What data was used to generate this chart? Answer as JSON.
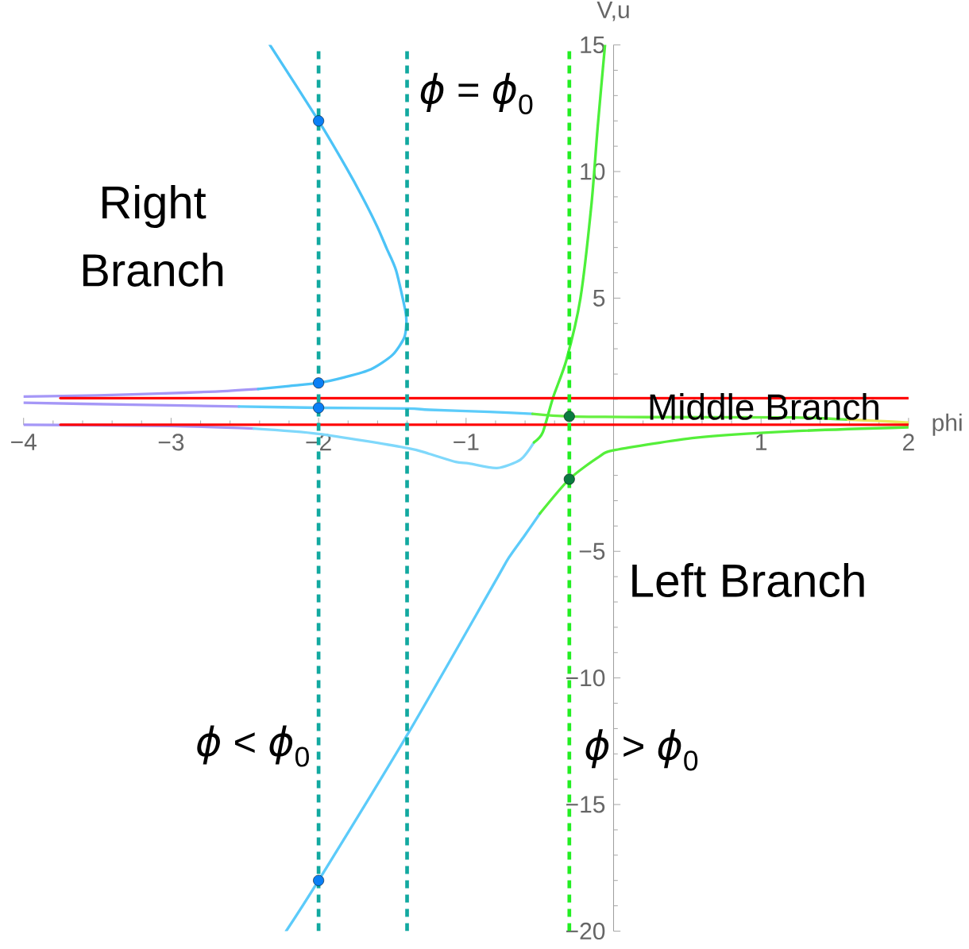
{
  "chart_data": {
    "type": "line",
    "xlabel": "phi",
    "ylabel": "V,u",
    "xlim": [
      -4,
      2
    ],
    "ylim": [
      -20,
      15
    ],
    "xticks": [
      {
        "value": -4,
        "label": "−4"
      },
      {
        "value": -3,
        "label": "−3"
      },
      {
        "value": -2,
        "label": "−2"
      },
      {
        "value": -1,
        "label": "−1"
      },
      1,
      2
    ],
    "yticks": [
      {
        "value": -20,
        "label": "−20"
      },
      {
        "value": -15,
        "label": "−15"
      },
      {
        "value": -10,
        "label": "−10"
      },
      {
        "value": -5,
        "label": "−5"
      },
      5,
      10,
      15
    ],
    "series": [
      {
        "color": "#a597f7",
        "x": [
          -4,
          -3.5,
          -3.09,
          -2.7,
          -2.41
        ],
        "values": [
          1.11,
          1.16,
          1.23,
          1.31,
          1.41
        ]
      },
      {
        "color": "#4cc3f7",
        "x": [
          -2.41,
          -2.2,
          -2,
          -1.82,
          -1.645,
          -1.5,
          -1.42,
          -1.405,
          -1.411,
          -1.475,
          -1.539,
          -1.603,
          -1.71,
          -1.816,
          -2,
          -2.33
        ],
        "values": [
          1.41,
          1.53,
          1.65,
          1.88,
          2.19,
          2.75,
          3.43,
          3.99,
          4.48,
          6.1,
          6.97,
          7.83,
          9.07,
          10.19,
          12,
          15
        ]
      },
      {
        "color": "#a597f7",
        "x": [
          -4,
          -3.26,
          -2.54
        ],
        "values": [
          0.87,
          0.79,
          0.72
        ]
      },
      {
        "color": "#5cccfa",
        "x": [
          -2.54,
          -2,
          -1.4,
          -1.25,
          -0.84,
          -0.55
        ],
        "values": [
          0.72,
          0.67,
          0.64,
          0.59,
          0.51,
          0.43
        ]
      },
      {
        "color": "#66f040",
        "x": [
          -0.55,
          -0.3,
          0.24,
          1.2,
          1.59
        ],
        "values": [
          0.43,
          0.33,
          0.3,
          0.29,
          0.2
        ]
      },
      {
        "color": "#eae85a",
        "x": [
          1.59,
          1.8,
          2
        ],
        "values": [
          0.2,
          0.15,
          0.08
        ]
      },
      {
        "color": "#a597f7",
        "x": [
          -4,
          -3,
          -2.44
        ],
        "values": [
          0,
          -0.05,
          -0.15
        ]
      },
      {
        "color": "#7fd8fb",
        "x": [
          -2.44,
          -2,
          -1.4,
          -1.25,
          -1.07,
          -0.98,
          -0.79,
          -0.63,
          -0.54
        ],
        "values": [
          -0.15,
          -0.36,
          -0.92,
          -1.15,
          -1.47,
          -1.53,
          -1.71,
          -1.37,
          -0.7
        ]
      },
      {
        "color": "#4cf03a",
        "x": [
          -0.54,
          -0.48,
          -0.41,
          -0.32,
          -0.225,
          -0.15,
          -0.107,
          -0.058
        ],
        "values": [
          -0.7,
          -0.3,
          1.08,
          2.55,
          4.98,
          8.7,
          11.81,
          15
        ]
      },
      {
        "color": "#5ccbfa",
        "x": [
          -2.22,
          -2,
          -1.4,
          -0.82,
          -0.71,
          -0.6,
          -0.5
        ],
        "values": [
          -20,
          -18,
          -12.26,
          -6.37,
          -5.25,
          -4.35,
          -3.51
        ]
      },
      {
        "color": "#55ef3a",
        "x": [
          -0.5,
          -0.3,
          -0.1,
          0.01,
          0.56,
          1.2,
          2
        ],
        "values": [
          -3.51,
          -2.15,
          -1.27,
          -1,
          -0.51,
          -0.26,
          -0.1
        ]
      },
      {
        "color": "#ff0000",
        "x": [
          -3.75,
          2
        ],
        "values": [
          1.05,
          1.05
        ]
      },
      {
        "color": "#ff0000",
        "x": [
          -3.75,
          2
        ],
        "values": [
          0,
          0
        ]
      },
      {
        "type": "scatter",
        "marker": "circle",
        "color": "#0a7ff5",
        "x": [
          -2,
          -2,
          -2,
          -2
        ],
        "values": [
          12,
          1.65,
          0.67,
          -18
        ]
      },
      {
        "type": "scatter",
        "marker": "circle",
        "color": "#0a7a40",
        "x": [
          -0.3,
          -0.3
        ],
        "values": [
          0.33,
          -2.15
        ]
      }
    ],
    "ref_lines": [
      {
        "axis": "x",
        "value": -2,
        "color": "#12a9a0",
        "line_style": "dashed"
      },
      {
        "axis": "x",
        "value": -1.4,
        "color": "#12a9a0",
        "line_style": "dashed"
      },
      {
        "axis": "x",
        "value": -0.3,
        "color": "#22ee22",
        "line_style": "dashed"
      }
    ],
    "annotations": [
      "Right Branch",
      "*ϕ* = *ϕ*$_{0}$",
      "Middle Branch",
      "Left Branch",
      "*ϕ* < *ϕ*$_{0}$",
      "*ϕ* > *ϕ*$_{0}$"
    ]
  }
}
